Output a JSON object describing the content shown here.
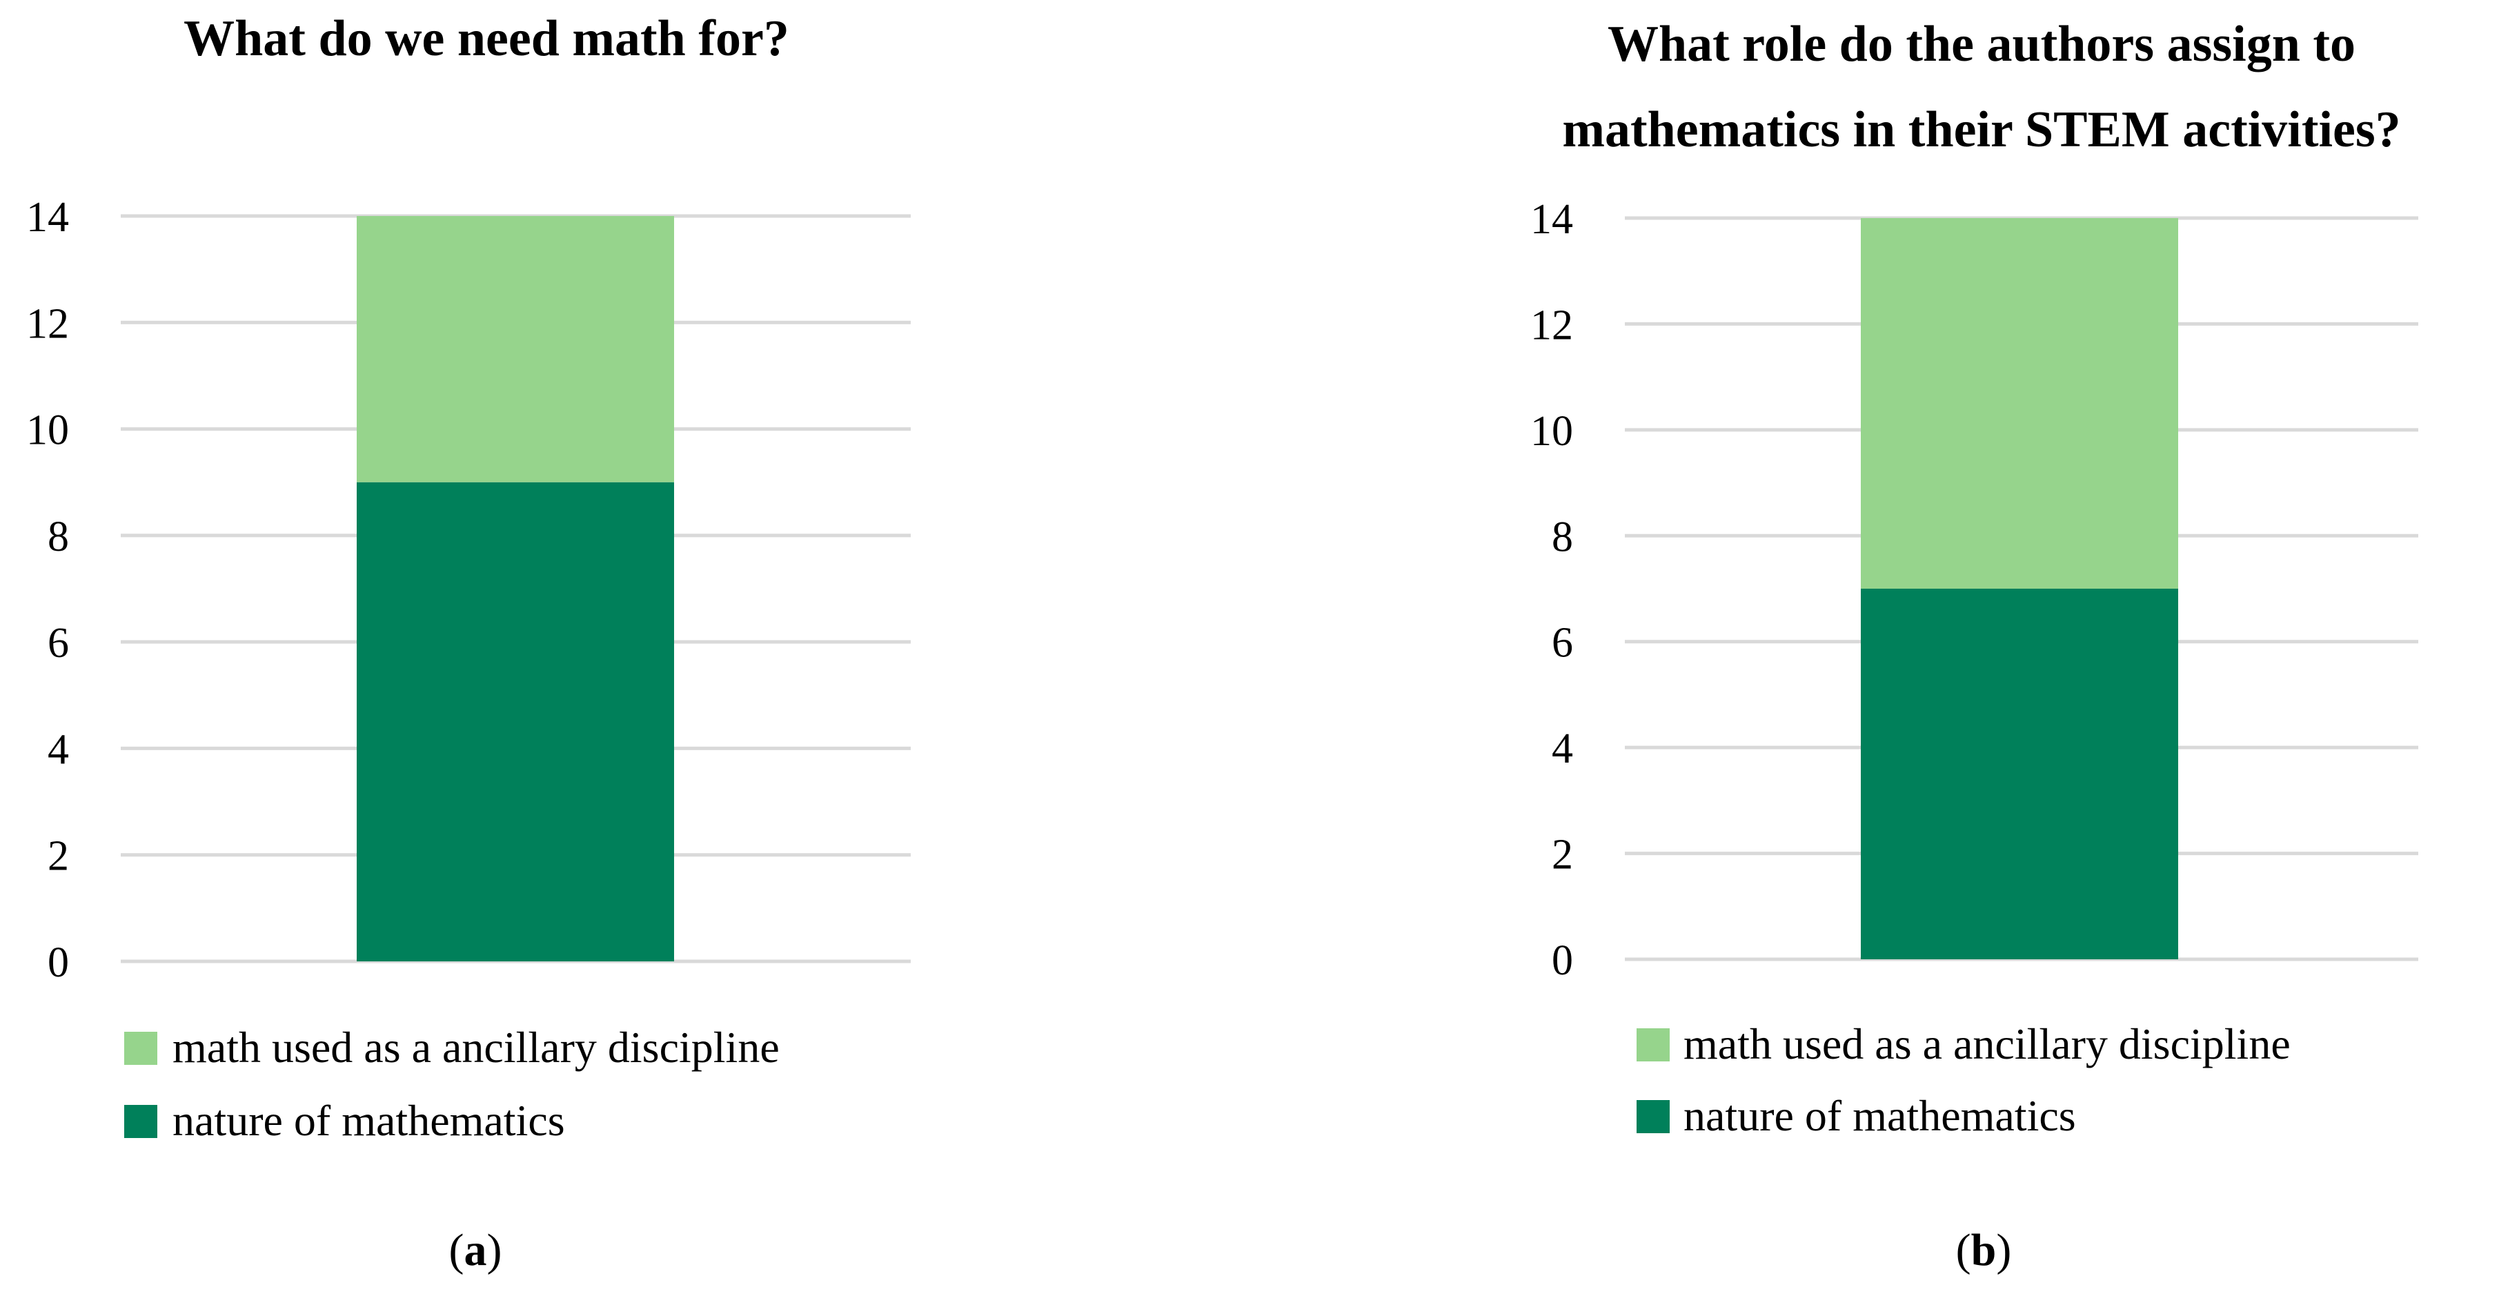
{
  "chart_data": [
    {
      "type": "bar",
      "stacked": true,
      "title": "What do we need math for?",
      "categories": [
        ""
      ],
      "series": [
        {
          "name": "nature of mathematics",
          "values": [
            9
          ],
          "color": "#00805a"
        },
        {
          "name": "math used as a ancillary discipline",
          "values": [
            5
          ],
          "color": "#96d48c"
        }
      ],
      "ylim": [
        0,
        14
      ],
      "yticks": [
        "0",
        "2",
        "4",
        "6",
        "8",
        "10",
        "12",
        "14"
      ],
      "grid": true,
      "legend": {
        "position": "bottom-left",
        "entries": [
          "math used as a ancillary discipline",
          "nature of mathematics"
        ]
      },
      "caption": {
        "open": "(",
        "letter": "a",
        "close": ")"
      }
    },
    {
      "type": "bar",
      "stacked": true,
      "title_lines": [
        "What role do the authors assign to",
        "mathematics in their STEM activities?"
      ],
      "categories": [
        ""
      ],
      "series": [
        {
          "name": "nature of mathematics",
          "values": [
            7
          ],
          "color": "#00805a"
        },
        {
          "name": "math used as a ancillary discipline",
          "values": [
            7
          ],
          "color": "#96d48c"
        }
      ],
      "ylim": [
        0,
        14
      ],
      "yticks": [
        "0",
        "2",
        "4",
        "6",
        "8",
        "10",
        "12",
        "14"
      ],
      "grid": true,
      "legend": {
        "position": "bottom-left",
        "entries": [
          "math used as a ancillary discipline",
          "nature of mathematics"
        ]
      },
      "caption": {
        "open": "(",
        "letter": "b",
        "close": ")"
      }
    }
  ]
}
